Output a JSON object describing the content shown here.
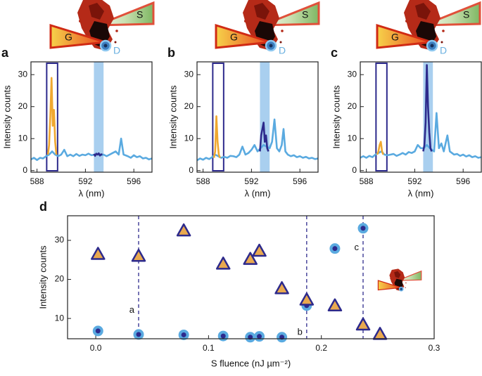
{
  "insets": [
    {
      "labels": [
        "G",
        "S",
        "D"
      ]
    },
    {
      "labels": [
        "G",
        "S",
        "D"
      ]
    },
    {
      "labels": [
        "G",
        "S",
        "D"
      ]
    }
  ],
  "chart_data": [
    {
      "type": "line",
      "panel_label": "a",
      "xlabel": "λ (nm)",
      "ylabel": "Intensity counts",
      "xlim": [
        587.5,
        597.5
      ],
      "ylim": [
        -0.5,
        34
      ],
      "xticks": [
        588,
        592,
        596
      ],
      "yticks": [
        0,
        10,
        20,
        30
      ],
      "highlights": [
        {
          "xlim": [
            592.7,
            593.5
          ],
          "style": "band",
          "color": "#a9cfef"
        },
        {
          "xlim": [
            588.8,
            589.7
          ],
          "style": "box",
          "color": "#2d2a8c"
        }
      ],
      "series": [
        {
          "color": "#5aaae0",
          "x": [
            587.5,
            587.75,
            588.0,
            588.25,
            588.5,
            588.75,
            589.0,
            589.25,
            589.5,
            589.75,
            590.0,
            590.25,
            590.5,
            590.75,
            591.0,
            591.25,
            591.5,
            591.75,
            592.0,
            592.25,
            592.5,
            592.75,
            593.0,
            593.25,
            593.5,
            593.75,
            594.0,
            594.25,
            594.5,
            594.75,
            594.95,
            595.15,
            595.5,
            595.75,
            596.0,
            596.25,
            596.5,
            596.75,
            597.0,
            597.25,
            597.5
          ],
          "values": [
            3.5,
            4,
            3.3,
            4,
            3.8,
            4.5,
            5,
            6,
            5,
            4.5,
            5,
            6.5,
            4.5,
            5,
            4.5,
            5.2,
            4.6,
            5,
            4.8,
            5.3,
            4.8,
            5,
            5.2,
            4.8,
            5,
            4.5,
            5,
            5.5,
            6,
            5,
            10,
            5,
            4.5,
            4,
            4.8,
            4.2,
            4.5,
            3.8,
            4,
            3.5,
            3.8
          ]
        },
        {
          "color": "#f0a830",
          "x": [
            588.9,
            589.0,
            589.1,
            589.2,
            589.3,
            589.4,
            589.5,
            589.6
          ],
          "values": [
            5,
            8,
            17,
            29,
            14,
            19,
            9,
            5
          ]
        },
        {
          "color": "#2d2a8c",
          "x": [
            592.7,
            592.8,
            592.9,
            593.0,
            593.1,
            593.2,
            593.3,
            593.4
          ],
          "values": [
            5.2,
            4.6,
            5.3,
            5.0,
            5.4,
            4.7,
            5.1,
            5.0
          ]
        }
      ]
    },
    {
      "type": "line",
      "panel_label": "b",
      "xlabel": "λ (nm)",
      "ylabel": "Intensity counts",
      "xlim": [
        587.5,
        597.5
      ],
      "ylim": [
        -0.5,
        34
      ],
      "xticks": [
        588,
        592,
        596
      ],
      "yticks": [
        0,
        10,
        20,
        30
      ],
      "highlights": [
        {
          "xlim": [
            592.7,
            593.5
          ],
          "style": "band",
          "color": "#a9cfef"
        },
        {
          "xlim": [
            588.8,
            589.7
          ],
          "style": "box",
          "color": "#2d2a8c"
        }
      ],
      "series": [
        {
          "color": "#5aaae0",
          "x": [
            587.5,
            587.75,
            588.0,
            588.25,
            588.5,
            588.75,
            589.0,
            589.25,
            589.5,
            589.75,
            590.0,
            590.25,
            590.5,
            590.75,
            591.0,
            591.25,
            591.5,
            591.75,
            592.0,
            592.25,
            592.5,
            592.75,
            593.0,
            593.25,
            593.5,
            593.7,
            593.9,
            594.1,
            594.3,
            594.5,
            594.65,
            594.8,
            595.0,
            595.25,
            595.5,
            595.75,
            596.0,
            596.25,
            596.5,
            596.75,
            597.0,
            597.25,
            597.5
          ],
          "values": [
            3.2,
            3.8,
            3.4,
            4,
            3.6,
            4.2,
            5,
            4.5,
            4,
            4.3,
            4,
            4.6,
            4.5,
            4.2,
            5,
            7.5,
            5,
            5.5,
            6.5,
            8,
            6,
            7,
            8,
            7.5,
            7,
            9,
            16,
            7,
            6,
            8,
            13,
            6,
            5,
            4.5,
            4.8,
            4.2,
            4.5,
            4,
            4.3,
            3.8,
            4,
            3.6,
            3.8
          ]
        },
        {
          "color": "#f0a830",
          "x": [
            588.9,
            589.0,
            589.1,
            589.2,
            589.3,
            589.4
          ],
          "values": [
            4,
            6,
            17,
            9,
            5,
            4
          ]
        },
        {
          "color": "#2d2a8c",
          "x": [
            592.7,
            592.8,
            592.9,
            593.0,
            593.1,
            593.2,
            593.3,
            593.4
          ],
          "values": [
            6,
            11,
            13,
            15,
            9,
            11,
            7,
            6
          ]
        }
      ]
    },
    {
      "type": "line",
      "panel_label": "c",
      "xlabel": "λ (nm)",
      "ylabel": "Intensity counts",
      "xlim": [
        587.5,
        597.5
      ],
      "ylim": [
        -0.5,
        34
      ],
      "xticks": [
        588,
        592,
        596
      ],
      "yticks": [
        0,
        10,
        20,
        30
      ],
      "highlights": [
        {
          "xlim": [
            592.7,
            593.5
          ],
          "style": "band",
          "color": "#a9cfef"
        },
        {
          "xlim": [
            588.8,
            589.7
          ],
          "style": "box",
          "color": "#2d2a8c"
        }
      ],
      "series": [
        {
          "color": "#5aaae0",
          "x": [
            587.5,
            587.75,
            588.0,
            588.25,
            588.5,
            588.75,
            589.0,
            589.25,
            589.5,
            589.75,
            590.0,
            590.25,
            590.5,
            590.75,
            591.0,
            591.25,
            591.5,
            591.75,
            592.0,
            592.25,
            592.5,
            592.75,
            593.0,
            593.25,
            593.6,
            593.8,
            594.0,
            594.2,
            594.4,
            594.7,
            594.9,
            595.25,
            595.5,
            595.75,
            596.0,
            596.25,
            596.5,
            596.75,
            597.0,
            597.25,
            597.5
          ],
          "values": [
            4,
            4.5,
            4,
            4.6,
            4.2,
            5,
            5.5,
            6,
            5,
            4.8,
            5,
            5.2,
            4.6,
            5,
            5.5,
            5,
            5.8,
            5.5,
            6,
            8,
            7,
            7,
            8,
            7,
            6,
            18,
            7,
            8.5,
            6,
            11,
            6,
            5,
            5.2,
            4.6,
            5,
            4.4,
            4.8,
            4.2,
            4.5,
            4,
            4.2
          ]
        },
        {
          "color": "#f0a830",
          "x": [
            588.9,
            589.0,
            589.1,
            589.2,
            589.3,
            589.4
          ],
          "values": [
            5,
            6,
            8,
            9,
            6,
            5
          ]
        },
        {
          "color": "#2d2a8c",
          "x": [
            592.7,
            592.8,
            592.9,
            593.0,
            593.1,
            593.2,
            593.3,
            593.4
          ],
          "values": [
            6,
            8,
            15,
            33,
            20,
            12,
            7,
            6
          ]
        }
      ]
    },
    {
      "type": "scatter",
      "panel_label": "d",
      "xlabel": "S fluence (nJ µm⁻²)",
      "ylabel": "Intensity counts",
      "xlim": [
        -0.025,
        0.3
      ],
      "ylim": [
        4.8,
        36.3
      ],
      "xticks": [
        {
          "value": 0,
          "label": "0.0"
        },
        0.1,
        0.2,
        0.3
      ],
      "yticks": [
        10,
        20,
        30
      ],
      "vlines": [
        {
          "x": 0.038,
          "label": "a"
        },
        {
          "x": 0.187,
          "label": "b"
        },
        {
          "x": 0.237,
          "label": "c"
        }
      ],
      "series": [
        {
          "marker": "circle",
          "color": "#2d2a8c",
          "edgecolor": "#5aaae0",
          "x": [
            0.002,
            0.038,
            0.078,
            0.113,
            0.137,
            0.145,
            0.165,
            0.187,
            0.212,
            0.237
          ],
          "values": [
            6.8,
            5.9,
            5.8,
            5.5,
            5.2,
            5.4,
            5.2,
            13.3,
            27.9,
            33.1
          ]
        },
        {
          "marker": "triangle",
          "color": "#e9a94f",
          "edgecolor": "#2d2a8c",
          "x": [
            0.002,
            0.038,
            0.078,
            0.113,
            0.137,
            0.145,
            0.165,
            0.187,
            0.212,
            0.237,
            0.252
          ],
          "values": [
            26.5,
            26.0,
            32.5,
            24.0,
            25.2,
            27.3,
            17.7,
            14.8,
            13.3,
            8.4,
            6.0
          ]
        }
      ]
    }
  ]
}
